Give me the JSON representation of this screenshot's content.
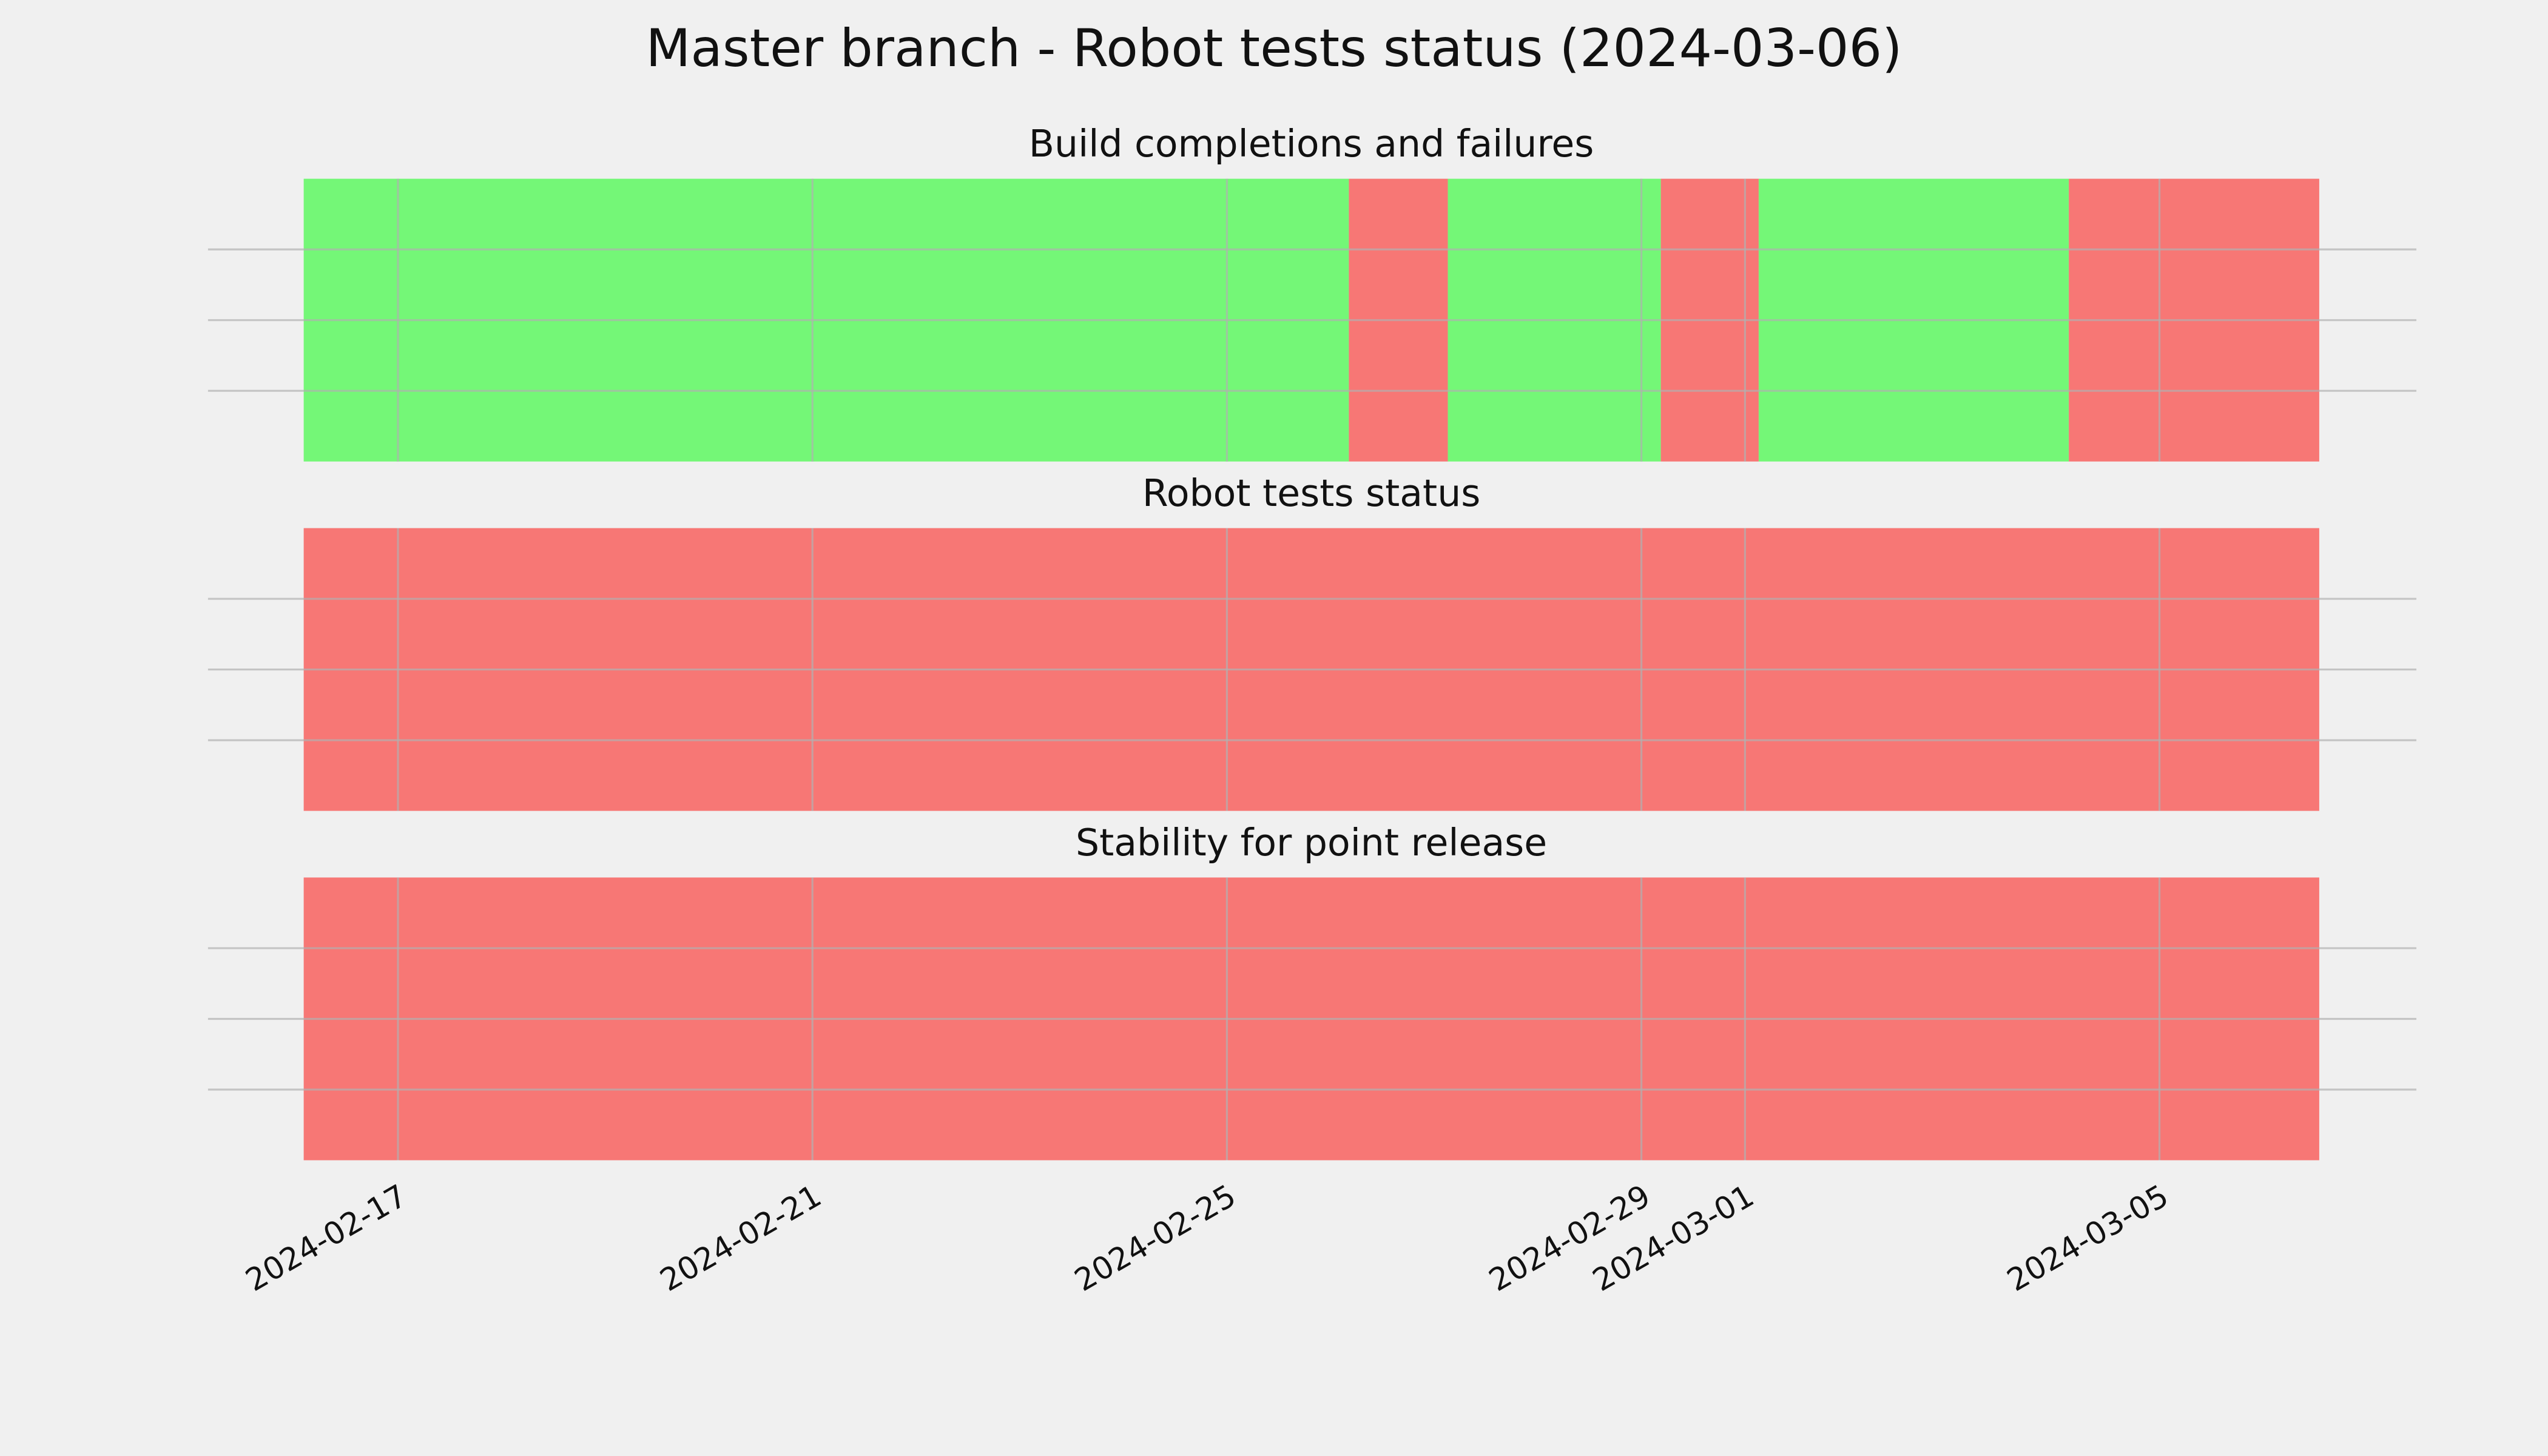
{
  "chart_data": {
    "type": "timeline",
    "title": "Master branch - Robot tests status (2024-03-06)",
    "xlim": [
      "2024-02-15T04:00Z",
      "2024-03-07T11:30Z"
    ],
    "xticks": [
      "2024-02-17",
      "2024-02-21",
      "2024-02-25",
      "2024-02-29",
      "2024-03-01",
      "2024-03-05"
    ],
    "ylim": [
      0,
      1
    ],
    "yticks": [
      0.25,
      0.5,
      0.75
    ],
    "grid": true,
    "panels": [
      {
        "title": "Build completions and failures",
        "spans": [
          {
            "start": "2024-02-16T02:10Z",
            "end": "2024-02-26T04:15Z",
            "color": "#74f777"
          },
          {
            "start": "2024-02-26T04:15Z",
            "end": "2024-02-27T03:10Z",
            "color": "#f77775"
          },
          {
            "start": "2024-02-27T03:10Z",
            "end": "2024-02-29T04:30Z",
            "color": "#74f777"
          },
          {
            "start": "2024-02-29T04:30Z",
            "end": "2024-03-01T03:10Z",
            "color": "#f77775"
          },
          {
            "start": "2024-03-01T03:10Z",
            "end": "2024-03-04T03:00Z",
            "color": "#74f777"
          },
          {
            "start": "2024-03-04T03:00Z",
            "end": "2024-03-06T13:00Z",
            "color": "#f77775"
          }
        ]
      },
      {
        "title": "Robot tests status",
        "spans": [
          {
            "start": "2024-02-16T02:10Z",
            "end": "2024-03-06T13:00Z",
            "color": "#f77775"
          }
        ]
      },
      {
        "title": "Stability for point release",
        "spans": [
          {
            "start": "2024-02-16T02:10Z",
            "end": "2024-03-06T13:00Z",
            "color": "#f77775"
          }
        ]
      }
    ]
  }
}
